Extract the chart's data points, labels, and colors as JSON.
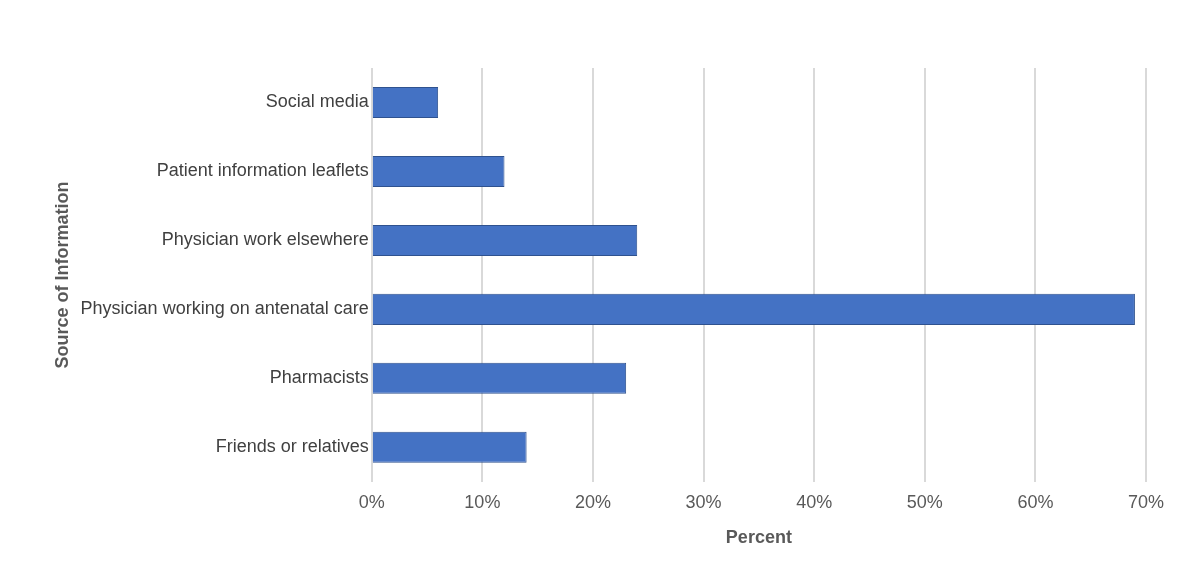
{
  "chart_data": {
    "type": "bar",
    "orientation": "horizontal",
    "xlabel": "Percent",
    "ylabel": "Source of Information",
    "categories": [
      "Social media",
      "Patient information leaflets",
      "Physician work elsewhere",
      "Physician working on antenatal care",
      "Pharmacists",
      "Friends or relatives"
    ],
    "values": [
      6,
      12,
      24,
      69,
      23,
      14
    ],
    "color": "#4472c4",
    "xlim": [
      0,
      70
    ],
    "xticks": [
      {
        "value": 0,
        "label": "0%"
      },
      {
        "value": 10,
        "label": "10%"
      },
      {
        "value": 20,
        "label": "20%"
      },
      {
        "value": 30,
        "label": "30%"
      },
      {
        "value": 40,
        "label": "40%"
      },
      {
        "value": 50,
        "label": "50%"
      },
      {
        "value": 60,
        "label": "60%"
      },
      {
        "value": 70,
        "label": "70%"
      }
    ],
    "grid": "x",
    "legend": false
  }
}
